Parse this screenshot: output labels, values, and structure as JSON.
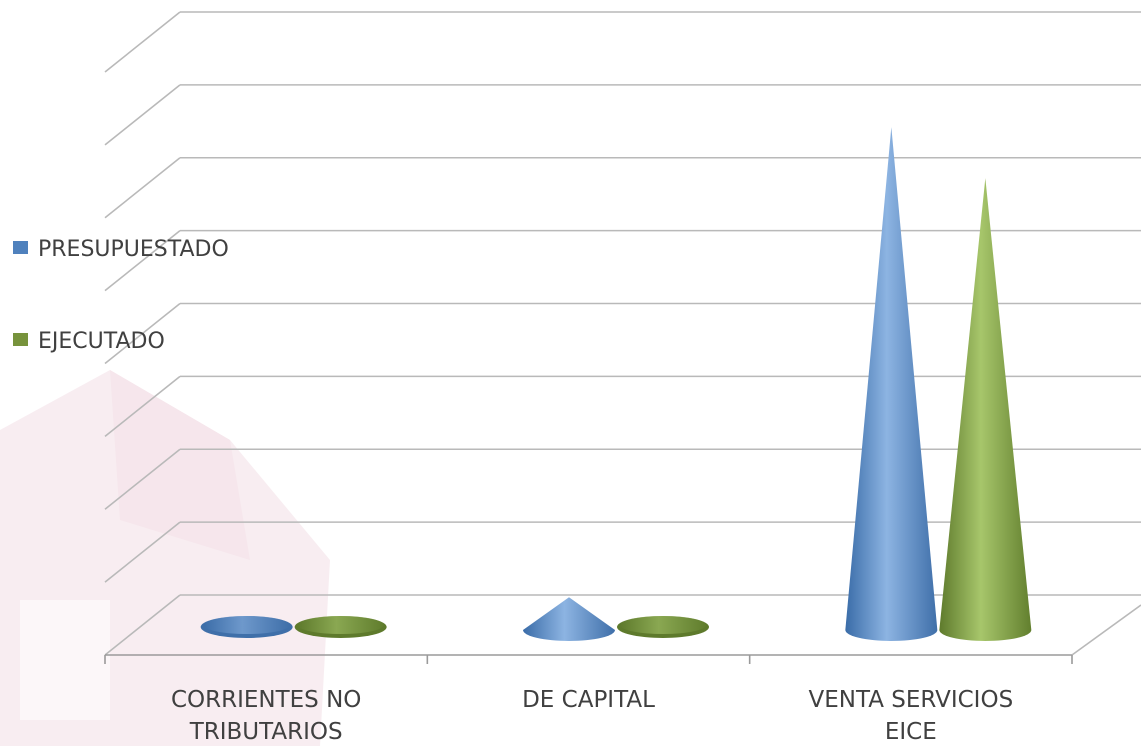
{
  "chart_data": {
    "type": "bar",
    "style": "3d-cone",
    "categories": [
      "CORRIENTES NO TRIBUTARIOS",
      "DE CAPITAL",
      "VENTA SERVICIOS EICE"
    ],
    "category_lines": [
      [
        "CORRIENTES NO",
        "TRIBUTARIOS"
      ],
      [
        "DE CAPITAL"
      ],
      [
        "VENTA SERVICIOS",
        "EICE"
      ]
    ],
    "series": [
      {
        "name": "PRESUPUESTADO",
        "color": "#4F81BD",
        "values": [
          0.0,
          0.45,
          6.9
        ]
      },
      {
        "name": "EJECUTADO",
        "color": "#77933C",
        "values": [
          0.0,
          0.0,
          6.2
        ]
      }
    ],
    "ylim": [
      0,
      8
    ],
    "grid": true,
    "axis_tick_labels_visible": false,
    "legend": {
      "position": "left"
    }
  }
}
